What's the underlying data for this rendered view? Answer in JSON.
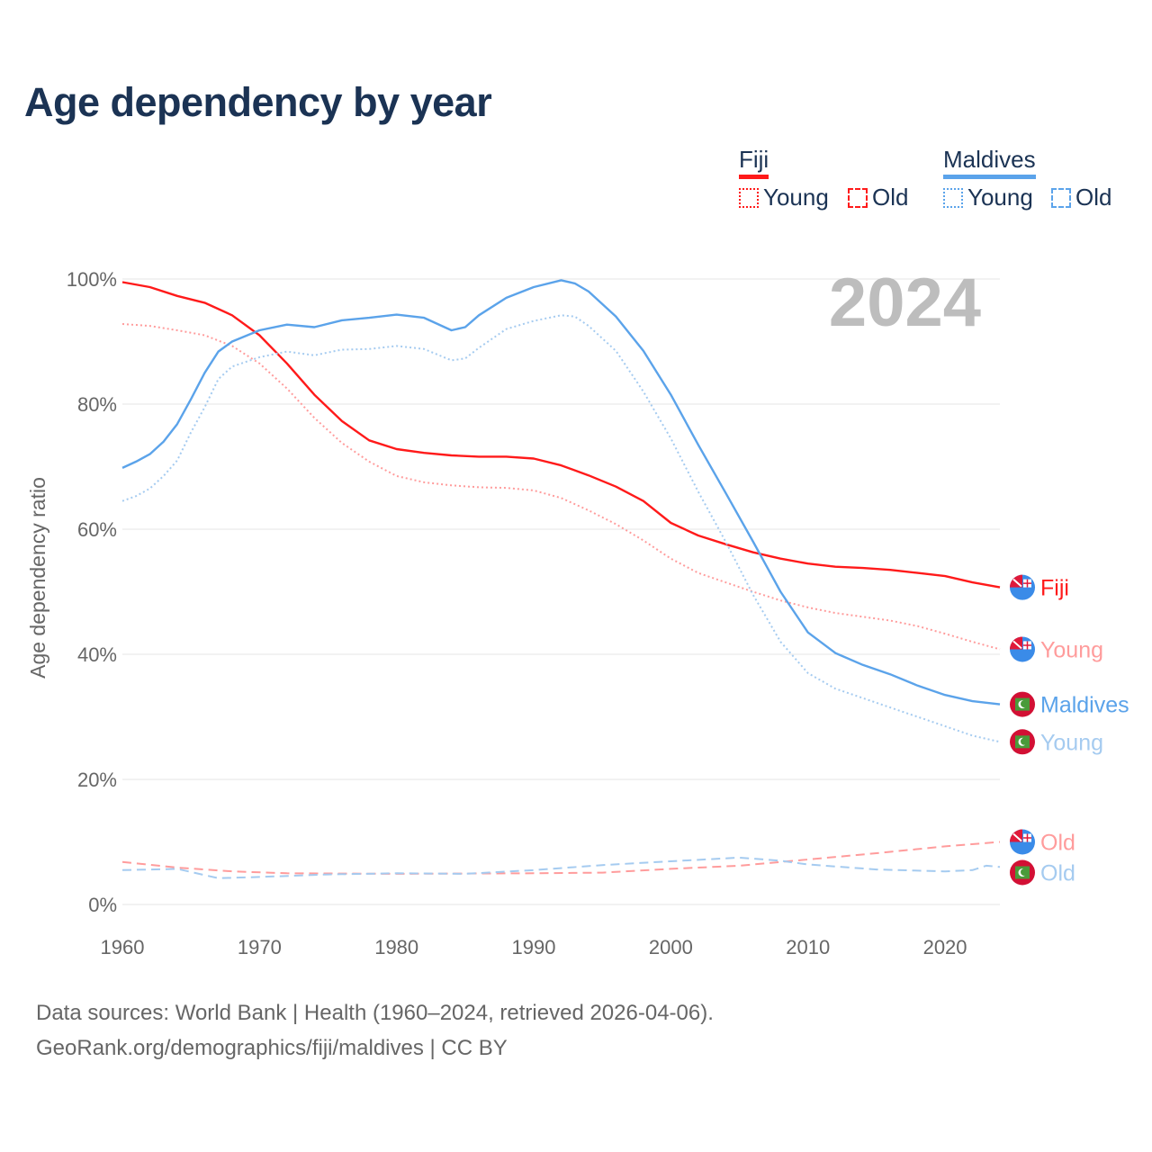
{
  "title": "Age dependency by year",
  "legend": {
    "groups": [
      {
        "name": "Fiji",
        "color": "#ff1a1a",
        "items": [
          "Young",
          "Old"
        ]
      },
      {
        "name": "Maldives",
        "color": "#5ba3ea",
        "items": [
          "Young",
          "Old"
        ]
      }
    ]
  },
  "footer": {
    "line1": "Data sources: World Bank | Health (1960–2024, retrieved 2026-04-06).",
    "line2": "GeoRank.org/demographics/fiji/maldives | CC BY"
  },
  "chart_data": {
    "type": "line",
    "title": "Age dependency by year",
    "year_label": "2024",
    "xlabel": "",
    "ylabel": "Age dependency ratio",
    "xlim": [
      1960,
      2024
    ],
    "ylim": [
      0,
      100
    ],
    "xticks": [
      "1960",
      "1970",
      "1980",
      "1990",
      "2000",
      "2010",
      "2020"
    ],
    "yticks": [
      "0%",
      "20%",
      "40%",
      "60%",
      "80%",
      "100%"
    ],
    "grid": true,
    "series": [
      {
        "name": "Fiji",
        "end_label": "Fiji",
        "flag": "fiji",
        "color": "#ff1a1a",
        "style": "solid",
        "x": [
          1960,
          1962,
          1964,
          1966,
          1968,
          1970,
          1972,
          1974,
          1976,
          1978,
          1980,
          1982,
          1984,
          1986,
          1988,
          1990,
          1992,
          1994,
          1996,
          1998,
          2000,
          2002,
          2004,
          2006,
          2008,
          2010,
          2012,
          2014,
          2016,
          2018,
          2020,
          2022,
          2024
        ],
        "y": [
          99.5,
          98.7,
          97.3,
          96.2,
          94.2,
          91,
          86.5,
          81.5,
          77.3,
          74.2,
          72.8,
          72.2,
          71.8,
          71.6,
          71.6,
          71.3,
          70.2,
          68.6,
          66.8,
          64.5,
          61,
          59,
          57.6,
          56.3,
          55.3,
          54.5,
          54,
          53.8,
          53.5,
          53,
          52.5,
          51.5,
          50.7
        ]
      },
      {
        "name": "Fiji Young",
        "end_label": "Young",
        "flag": "fiji",
        "color": "#ff9c9c",
        "style": "dotted",
        "x": [
          1960,
          1962,
          1964,
          1966,
          1968,
          1970,
          1972,
          1974,
          1976,
          1978,
          1980,
          1982,
          1984,
          1986,
          1988,
          1990,
          1992,
          1994,
          1996,
          1998,
          2000,
          2002,
          2004,
          2006,
          2008,
          2010,
          2012,
          2014,
          2016,
          2018,
          2020,
          2022,
          2024
        ],
        "y": [
          92.8,
          92.5,
          91.8,
          91,
          89.3,
          86.5,
          82.5,
          77.8,
          73.8,
          70.8,
          68.5,
          67.5,
          67,
          66.7,
          66.6,
          66.2,
          65,
          63,
          60.8,
          58.2,
          55.3,
          53,
          51.5,
          50,
          48.6,
          47.5,
          46.6,
          46,
          45.4,
          44.5,
          43.3,
          42,
          40.8
        ]
      },
      {
        "name": "Maldives",
        "end_label": "Maldives",
        "flag": "maldives",
        "color": "#5ba3ea",
        "style": "solid",
        "x": [
          1960,
          1961,
          1962,
          1963,
          1964,
          1965,
          1966,
          1967,
          1968,
          1970,
          1972,
          1974,
          1976,
          1978,
          1980,
          1982,
          1984,
          1985,
          1986,
          1988,
          1990,
          1992,
          1993,
          1994,
          1996,
          1998,
          2000,
          2002,
          2004,
          2006,
          2008,
          2010,
          2012,
          2014,
          2016,
          2018,
          2020,
          2022,
          2024
        ],
        "y": [
          69.8,
          70.8,
          72,
          74,
          76.8,
          80.8,
          85,
          88.4,
          90,
          91.8,
          92.7,
          92.3,
          93.4,
          93.8,
          94.3,
          93.8,
          91.8,
          92.3,
          94.2,
          97,
          98.7,
          99.8,
          99.3,
          98,
          94,
          88.5,
          81.5,
          73.5,
          65.8,
          58,
          50,
          43.5,
          40.2,
          38.3,
          36.8,
          35,
          33.5,
          32.5,
          32
        ]
      },
      {
        "name": "Maldives Young",
        "end_label": "Young",
        "flag": "maldives",
        "color": "#a5cbf0",
        "style": "dotted",
        "x": [
          1960,
          1961,
          1962,
          1963,
          1964,
          1965,
          1966,
          1967,
          1968,
          1970,
          1972,
          1974,
          1976,
          1978,
          1980,
          1982,
          1984,
          1985,
          1986,
          1988,
          1990,
          1992,
          1993,
          1994,
          1996,
          1998,
          2000,
          2002,
          2004,
          2006,
          2008,
          2010,
          2012,
          2014,
          2016,
          2018,
          2020,
          2022,
          2024
        ],
        "y": [
          64.5,
          65.3,
          66.5,
          68.5,
          71,
          75.5,
          79.5,
          84,
          86,
          87.5,
          88.4,
          87.8,
          88.7,
          88.8,
          89.3,
          88.8,
          87,
          87.3,
          89,
          92,
          93.3,
          94.2,
          94,
          92.5,
          88.5,
          82,
          74.5,
          66,
          58,
          49.5,
          42,
          37,
          34.5,
          33,
          31.5,
          30,
          28.5,
          27,
          26
        ]
      },
      {
        "name": "Fiji Old",
        "end_label": "Old",
        "flag": "fiji",
        "color": "#ff9c9c",
        "style": "dashed",
        "x": [
          1960,
          1964,
          1968,
          1972,
          1980,
          1990,
          1995,
          2000,
          2005,
          2010,
          2015,
          2020,
          2024
        ],
        "y": [
          6.8,
          5.9,
          5.3,
          5,
          4.9,
          5,
          5.1,
          5.7,
          6.2,
          7.2,
          8.2,
          9.3,
          10
        ]
      },
      {
        "name": "Maldives Old",
        "end_label": "Old",
        "flag": "maldives",
        "color": "#a5cbf0",
        "style": "dashed",
        "x": [
          1960,
          1964,
          1967,
          1970,
          1975,
          1980,
          1985,
          1990,
          1995,
          2000,
          2005,
          2008,
          2010,
          2015,
          2020,
          2022,
          2023,
          2024
        ],
        "y": [
          5.5,
          5.7,
          4.2,
          4.4,
          4.8,
          5,
          4.9,
          5.5,
          6.3,
          6.9,
          7.5,
          7,
          6.4,
          5.6,
          5.3,
          5.5,
          6.2,
          6
        ]
      }
    ]
  }
}
